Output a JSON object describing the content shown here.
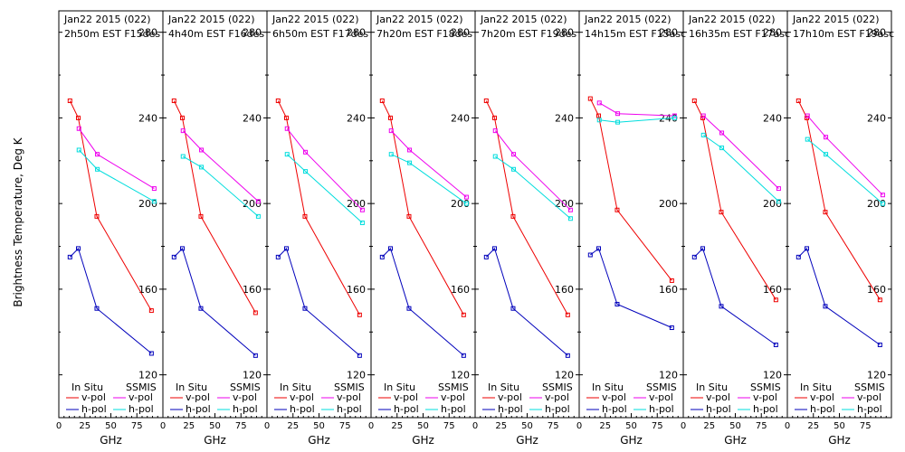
{
  "figure": {
    "ylabel": "Brightness Temperature, Deg K",
    "xlabel": "GHz",
    "legend": {
      "in_situ_header": "In Situ",
      "ssmis_header": "SSMIS",
      "vpol_label": "v-pol",
      "hpol_label": "h-pol"
    },
    "colors": {
      "insitu_v": "#ee0000",
      "insitu_h": "#0000bb",
      "ssmis_v": "#ee00ee",
      "ssmis_h": "#00dddd",
      "axis": "#000000"
    }
  },
  "chart_data": [
    {
      "type": "line",
      "title": "Jan22 2015 (022)",
      "subtitle": "2h50m EST F15des",
      "xlabel": "GHz",
      "ylabel": "Brightness Temperature, Deg K",
      "xlim": [
        0,
        100
      ],
      "ylim": [
        100,
        290
      ],
      "series": [
        {
          "name": "In Situ v-pol",
          "x": [
            10.7,
            18.7,
            36.5,
            89
          ],
          "values": [
            248,
            240,
            194,
            150
          ]
        },
        {
          "name": "In Situ h-pol",
          "x": [
            10.7,
            18.7,
            36.5,
            89
          ],
          "values": [
            175,
            179,
            151,
            130
          ]
        },
        {
          "name": "SSMIS v-pol",
          "x": [
            19.35,
            37,
            91.655
          ],
          "values": [
            235,
            223,
            207
          ]
        },
        {
          "name": "SSMIS h-pol",
          "x": [
            19.35,
            37,
            91.655
          ],
          "values": [
            225,
            216,
            201
          ]
        }
      ]
    },
    {
      "type": "line",
      "title": "Jan22 2015 (022)",
      "subtitle": "4h40m EST F16des",
      "xlabel": "GHz",
      "ylabel": "Brightness Temperature, Deg K",
      "xlim": [
        0,
        100
      ],
      "ylim": [
        100,
        290
      ],
      "series": [
        {
          "name": "In Situ v-pol",
          "x": [
            10.7,
            18.7,
            36.5,
            89
          ],
          "values": [
            248,
            240,
            194,
            149
          ]
        },
        {
          "name": "In Situ h-pol",
          "x": [
            10.7,
            18.7,
            36.5,
            89
          ],
          "values": [
            175,
            179,
            151,
            129
          ]
        },
        {
          "name": "SSMIS v-pol",
          "x": [
            19.35,
            37,
            91.655
          ],
          "values": [
            234,
            225,
            201
          ]
        },
        {
          "name": "SSMIS h-pol",
          "x": [
            19.35,
            37,
            91.655
          ],
          "values": [
            222,
            217,
            194
          ]
        }
      ]
    },
    {
      "type": "line",
      "title": "Jan22 2015 (022)",
      "subtitle": "6h50m EST F17des",
      "xlabel": "GHz",
      "ylabel": "Brightness Temperature, Deg K",
      "xlim": [
        0,
        100
      ],
      "ylim": [
        100,
        290
      ],
      "series": [
        {
          "name": "In Situ v-pol",
          "x": [
            10.7,
            18.7,
            36.5,
            89
          ],
          "values": [
            248,
            240,
            194,
            148
          ]
        },
        {
          "name": "In Situ h-pol",
          "x": [
            10.7,
            18.7,
            36.5,
            89
          ],
          "values": [
            175,
            179,
            151,
            129
          ]
        },
        {
          "name": "SSMIS v-pol",
          "x": [
            19.35,
            37,
            91.655
          ],
          "values": [
            235,
            224,
            197
          ]
        },
        {
          "name": "SSMIS h-pol",
          "x": [
            19.35,
            37,
            91.655
          ],
          "values": [
            223,
            215,
            191
          ]
        }
      ]
    },
    {
      "type": "line",
      "title": "Jan22 2015 (022)",
      "subtitle": "7h20m EST F18des",
      "xlabel": "GHz",
      "ylabel": "Brightness Temperature, Deg K",
      "xlim": [
        0,
        100
      ],
      "ylim": [
        100,
        290
      ],
      "series": [
        {
          "name": "In Situ v-pol",
          "x": [
            10.7,
            18.7,
            36.5,
            89
          ],
          "values": [
            248,
            240,
            194,
            148
          ]
        },
        {
          "name": "In Situ h-pol",
          "x": [
            10.7,
            18.7,
            36.5,
            89
          ],
          "values": [
            175,
            179,
            151,
            129
          ]
        },
        {
          "name": "SSMIS v-pol",
          "x": [
            19.35,
            37,
            91.655
          ],
          "values": [
            234,
            225,
            203
          ]
        },
        {
          "name": "SSMIS h-pol",
          "x": [
            19.35,
            37,
            91.655
          ],
          "values": [
            223,
            219,
            200
          ]
        }
      ]
    },
    {
      "type": "line",
      "title": "Jan22 2015 (022)",
      "subtitle": "7h20m EST F19des",
      "xlabel": "GHz",
      "ylabel": "Brightness Temperature, Deg K",
      "xlim": [
        0,
        100
      ],
      "ylim": [
        100,
        290
      ],
      "series": [
        {
          "name": "In Situ v-pol",
          "x": [
            10.7,
            18.7,
            36.5,
            89
          ],
          "values": [
            248,
            240,
            194,
            148
          ]
        },
        {
          "name": "In Situ h-pol",
          "x": [
            10.7,
            18.7,
            36.5,
            89
          ],
          "values": [
            175,
            179,
            151,
            129
          ]
        },
        {
          "name": "SSMIS v-pol",
          "x": [
            19.35,
            37,
            91.655
          ],
          "values": [
            234,
            223,
            197
          ]
        },
        {
          "name": "SSMIS h-pol",
          "x": [
            19.35,
            37,
            91.655
          ],
          "values": [
            222,
            216,
            193
          ]
        }
      ]
    },
    {
      "type": "line",
      "title": "Jan22 2015 (022)",
      "subtitle": "14h15m EST F15asc",
      "xlabel": "GHz",
      "ylabel": "Brightness Temperature, Deg K",
      "xlim": [
        0,
        100
      ],
      "ylim": [
        100,
        290
      ],
      "series": [
        {
          "name": "In Situ v-pol",
          "x": [
            10.7,
            18.7,
            36.5,
            89
          ],
          "values": [
            249,
            241,
            197,
            164
          ]
        },
        {
          "name": "In Situ h-pol",
          "x": [
            10.7,
            18.7,
            36.5,
            89
          ],
          "values": [
            176,
            179,
            153,
            142
          ]
        },
        {
          "name": "SSMIS v-pol",
          "x": [
            19.35,
            37,
            91.655
          ],
          "values": [
            247,
            242,
            241
          ]
        },
        {
          "name": "SSMIS h-pol",
          "x": [
            19.35,
            37,
            91.655
          ],
          "values": [
            239,
            238,
            240
          ]
        }
      ]
    },
    {
      "type": "line",
      "title": "Jan22 2015 (022)",
      "subtitle": "16h35m EST F17asc",
      "xlabel": "GHz",
      "ylabel": "Brightness Temperature, Deg K",
      "xlim": [
        0,
        100
      ],
      "ylim": [
        100,
        290
      ],
      "series": [
        {
          "name": "In Situ v-pol",
          "x": [
            10.7,
            18.7,
            36.5,
            89
          ],
          "values": [
            248,
            240,
            196,
            155
          ]
        },
        {
          "name": "In Situ h-pol",
          "x": [
            10.7,
            18.7,
            36.5,
            89
          ],
          "values": [
            175,
            179,
            152,
            134
          ]
        },
        {
          "name": "SSMIS v-pol",
          "x": [
            19.35,
            37,
            91.655
          ],
          "values": [
            241,
            233,
            207
          ]
        },
        {
          "name": "SSMIS h-pol",
          "x": [
            19.35,
            37,
            91.655
          ],
          "values": [
            232,
            226,
            201
          ]
        }
      ]
    },
    {
      "type": "line",
      "title": "Jan22 2015 (022)",
      "subtitle": "17h10m EST F19asc",
      "xlabel": "GHz",
      "ylabel": "Brightness Temperature, Deg K",
      "xlim": [
        0,
        100
      ],
      "ylim": [
        100,
        290
      ],
      "series": [
        {
          "name": "In Situ v-pol",
          "x": [
            10.7,
            18.7,
            36.5,
            89
          ],
          "values": [
            248,
            240,
            196,
            155
          ]
        },
        {
          "name": "In Situ h-pol",
          "x": [
            10.7,
            18.7,
            36.5,
            89
          ],
          "values": [
            175,
            179,
            152,
            134
          ]
        },
        {
          "name": "SSMIS v-pol",
          "x": [
            19.35,
            37,
            91.655
          ],
          "values": [
            241,
            231,
            204
          ]
        },
        {
          "name": "SSMIS h-pol",
          "x": [
            19.35,
            37,
            91.655
          ],
          "values": [
            230,
            223,
            200
          ]
        }
      ]
    }
  ],
  "axes": {
    "y_ticks": [
      120,
      160,
      200,
      240,
      280
    ],
    "x_ticks": [
      0,
      25,
      50,
      75
    ]
  }
}
